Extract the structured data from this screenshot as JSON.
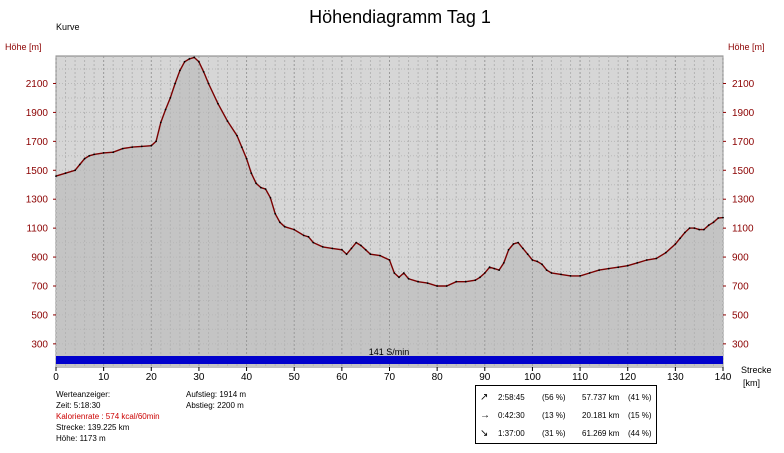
{
  "chart_data": {
    "type": "area",
    "title": "Höhendiagramm Tag 1",
    "subtitle": "Kurve",
    "ylabel_left": "Höhe [m]",
    "ylabel_right": "Höhe [m]",
    "xlabel": "Strecke",
    "xunit": "[km]",
    "xlim": [
      0,
      140
    ],
    "ylim": [
      140,
      2290
    ],
    "x_ticks": [
      0,
      10,
      20,
      30,
      40,
      50,
      60,
      70,
      80,
      90,
      100,
      110,
      120,
      130,
      140
    ],
    "y_ticks": [
      300,
      500,
      700,
      900,
      1100,
      1300,
      1500,
      1700,
      1900,
      2100
    ],
    "grid": true,
    "line_color": "#7a0000",
    "fill_color": "#d6d6d6",
    "band_label": "141 S/min",
    "band_color": "#0000cc",
    "series": [
      {
        "x": [
          0,
          2,
          4,
          5,
          6,
          7,
          8,
          10,
          12,
          14,
          16,
          18,
          20,
          21,
          22,
          23,
          24,
          25,
          26,
          27,
          28,
          29,
          30,
          31,
          32,
          34,
          36,
          38,
          39,
          40,
          41,
          42,
          43,
          44,
          45,
          46,
          47,
          48,
          50,
          52,
          53,
          54,
          56,
          58,
          60,
          61,
          62,
          63,
          64,
          65,
          66,
          68,
          70,
          71,
          72,
          73,
          74,
          76,
          78,
          80,
          82,
          84,
          86,
          88,
          89,
          90,
          91,
          92,
          93,
          94,
          95,
          96,
          97,
          98,
          99,
          100,
          101,
          102,
          103,
          104,
          106,
          108,
          110,
          112,
          114,
          116,
          118,
          120,
          122,
          124,
          126,
          128,
          130,
          131,
          132,
          133,
          134,
          135,
          136,
          137,
          138,
          139,
          140
        ],
        "y": [
          1460,
          1480,
          1500,
          1540,
          1580,
          1600,
          1610,
          1620,
          1625,
          1650,
          1660,
          1665,
          1670,
          1700,
          1830,
          1920,
          2000,
          2100,
          2190,
          2250,
          2270,
          2280,
          2250,
          2180,
          2100,
          1960,
          1840,
          1740,
          1660,
          1580,
          1480,
          1410,
          1380,
          1370,
          1310,
          1200,
          1140,
          1110,
          1090,
          1050,
          1040,
          1000,
          970,
          960,
          950,
          920,
          960,
          1000,
          980,
          950,
          920,
          910,
          880,
          790,
          760,
          790,
          750,
          730,
          720,
          700,
          700,
          730,
          730,
          740,
          760,
          790,
          830,
          820,
          810,
          860,
          950,
          990,
          1000,
          960,
          920,
          880,
          870,
          850,
          810,
          790,
          780,
          770,
          770,
          790,
          810,
          820,
          830,
          840,
          860,
          880,
          890,
          930,
          990,
          1030,
          1070,
          1100,
          1100,
          1090,
          1090,
          1120,
          1140,
          1170,
          1173
        ]
      }
    ]
  },
  "info_left": {
    "l1": "Werteanzeiger:",
    "l2": "Zeit: 5:18:30",
    "l3": "Kalorienrate : 574 kcal/60min",
    "l4": "Strecke: 139.225 km",
    "l5": "Höhe: 1173 m"
  },
  "info_mid": {
    "l1": "Aufstieg: 1914 m",
    "l2": "Abstieg: 2200 m"
  },
  "stats": [
    {
      "icon": "arrow-up-right-icon",
      "glyph": "↗",
      "time": "2:58:45",
      "time_pct": "(56 %)",
      "dist": "57.737 km",
      "dist_pct": "(41 %)"
    },
    {
      "icon": "arrow-right-icon",
      "glyph": "→",
      "time": "0:42:30",
      "time_pct": "(13 %)",
      "dist": "20.181 km",
      "dist_pct": "(15 %)"
    },
    {
      "icon": "arrow-down-right-icon",
      "glyph": "↘",
      "time": "1:37:00",
      "time_pct": "(31 %)",
      "dist": "61.269 km",
      "dist_pct": "(44 %)"
    }
  ]
}
